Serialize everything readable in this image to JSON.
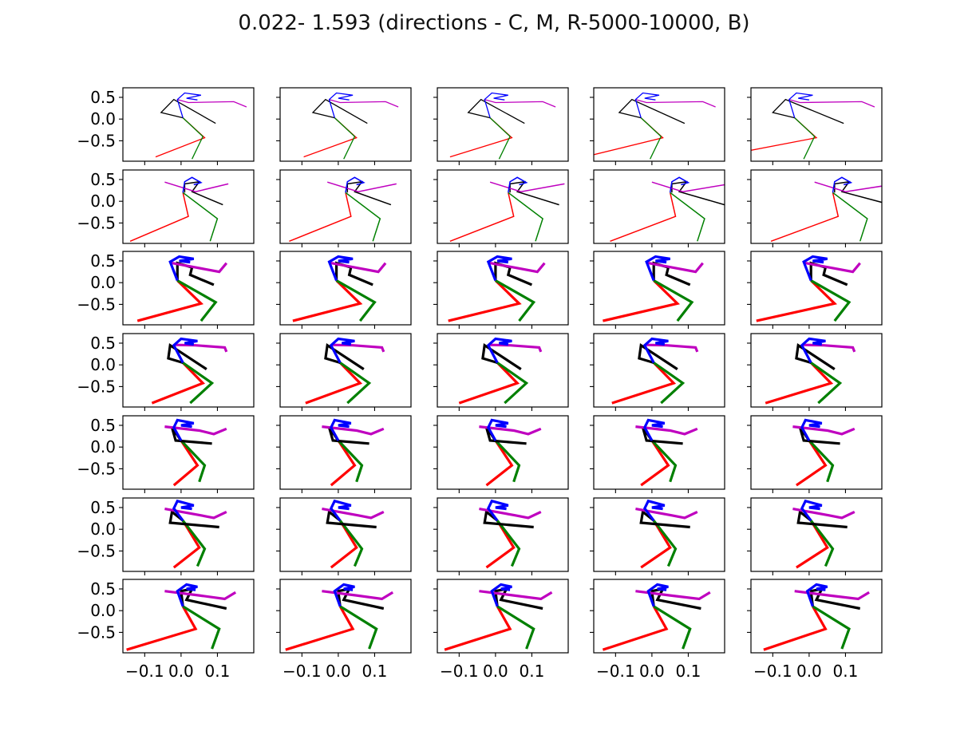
{
  "chart_data": {
    "type": "line",
    "title": "0.022- 1.593 (directions - C, M, R-5000-10000, B)",
    "grid": false,
    "layout": {
      "rows": 7,
      "cols": 5,
      "sharex": true,
      "sharey": true
    },
    "xlim": [
      -0.16,
      0.2
    ],
    "ylim": [
      -0.97,
      0.72
    ],
    "xticks": [
      -0.1,
      0.0,
      0.1
    ],
    "xtick_labels": [
      "−0.1",
      "0.0",
      "0.1"
    ],
    "yticks": [
      0.5,
      0.0,
      -0.5
    ],
    "ytick_labels": [
      "0.5",
      "0.0",
      "−0.5"
    ],
    "series_colors": [
      "#ff0000",
      "#008000",
      "#000000",
      "#bf00bf",
      "#0000ff"
    ],
    "row_line_widths": [
      1.3,
      1.5,
      3.2,
      3.2,
      3.2,
      3.2,
      3.2
    ],
    "rows": [
      {
        "base": [
          [
            [
              0.005,
              0.03
            ],
            [
              0.065,
              -0.43
            ],
            [
              -0.07,
              -0.87
            ]
          ],
          [
            [
              0.005,
              0.03
            ],
            [
              0.06,
              -0.4
            ],
            [
              0.03,
              -0.92
            ]
          ],
          [
            [
              0.005,
              0.03
            ],
            [
              -0.055,
              0.15
            ],
            [
              -0.02,
              0.45
            ],
            [
              0.095,
              -0.1
            ]
          ],
          [
            [
              -0.01,
              0.45
            ],
            [
              0.02,
              0.38
            ],
            [
              0.145,
              0.4
            ],
            [
              0.18,
              0.28
            ]
          ],
          [
            [
              0.005,
              0.03
            ],
            [
              -0.01,
              0.45
            ],
            [
              0.01,
              0.6
            ],
            [
              0.055,
              0.55
            ],
            [
              0.015,
              0.48
            ],
            [
              0.045,
              0.44
            ]
          ]
        ],
        "shift": [
          0,
          -0.015,
          -0.02,
          -0.035,
          -0.045
        ],
        "ext_delta": [
          0,
          0,
          0.005,
          0.03,
          0.045
        ],
        "arm_delta": [
          0,
          -0.01,
          -0.035,
          -0.08,
          -0.14
        ]
      },
      {
        "base": [
          [
            [
              0.005,
              0.2
            ],
            [
              0.02,
              -0.35
            ],
            [
              -0.14,
              -0.92
            ]
          ],
          [
            [
              0.005,
              0.2
            ],
            [
              0.1,
              -0.4
            ],
            [
              0.08,
              -0.92
            ]
          ],
          [
            [
              0.01,
              0.2
            ],
            [
              0.01,
              0.4
            ],
            [
              0.05,
              0.45
            ],
            [
              0.03,
              0.22
            ],
            [
              0.115,
              -0.08
            ]
          ],
          [
            [
              -0.045,
              0.44
            ],
            [
              0.04,
              0.22
            ],
            [
              0.13,
              0.4
            ]
          ],
          [
            [
              0.005,
              0.2
            ],
            [
              0.01,
              0.45
            ],
            [
              0.03,
              0.55
            ],
            [
              0.055,
              0.43
            ],
            [
              0.035,
              0.38
            ]
          ]
        ],
        "shift": [
          0,
          0.015,
          0.03,
          0.045,
          0.06
        ],
        "ext_delta": [
          0,
          0.015,
          0.03,
          0.04,
          0.05
        ],
        "arm_delta": [
          0,
          -0.01,
          -0.015,
          -0.02,
          -0.025
        ]
      },
      {
        "base": [
          [
            [
              -0.01,
              0.05
            ],
            [
              0.055,
              -0.48
            ],
            [
              -0.12,
              -0.88
            ]
          ],
          [
            [
              -0.01,
              0.05
            ],
            [
              0.095,
              -0.45
            ],
            [
              0.055,
              -0.88
            ]
          ],
          [
            [
              -0.01,
              0.05
            ],
            [
              -0.01,
              0.45
            ],
            [
              0.03,
              0.35
            ],
            [
              0.025,
              0.18
            ],
            [
              0.09,
              -0.05
            ]
          ],
          [
            [
              -0.03,
              0.46
            ],
            [
              0.04,
              0.35
            ],
            [
              0.105,
              0.25
            ],
            [
              0.125,
              0.45
            ]
          ],
          [
            [
              -0.01,
              0.05
            ],
            [
              -0.03,
              0.48
            ],
            [
              -0.005,
              0.6
            ],
            [
              0.035,
              0.55
            ],
            [
              -0.005,
              0.5
            ],
            [
              0.025,
              0.47
            ]
          ]
        ],
        "shift": [
          0,
          0.005,
          0.01,
          0.015,
          0.015
        ],
        "ext_delta": [
          0,
          0.0,
          0.0,
          0.0,
          0.0
        ],
        "arm_delta": [
          0,
          -0.01,
          -0.02,
          -0.03,
          -0.04
        ]
      },
      {
        "base": [
          [
            [
              0.005,
              0.05
            ],
            [
              0.06,
              -0.42
            ],
            [
              -0.08,
              -0.88
            ]
          ],
          [
            [
              0.005,
              0.05
            ],
            [
              0.085,
              -0.42
            ],
            [
              0.025,
              -0.88
            ]
          ],
          [
            [
              0.005,
              0.05
            ],
            [
              -0.035,
              0.15
            ],
            [
              -0.03,
              0.45
            ],
            [
              0.07,
              -0.1
            ]
          ],
          [
            [
              -0.015,
              0.46
            ],
            [
              0.04,
              0.45
            ],
            [
              0.12,
              0.4
            ],
            [
              0.125,
              0.3
            ]
          ],
          [
            [
              0.005,
              0.05
            ],
            [
              -0.02,
              0.45
            ],
            [
              0.0,
              0.6
            ],
            [
              0.045,
              0.55
            ],
            [
              0.01,
              0.5
            ],
            [
              0.035,
              0.47
            ]
          ]
        ],
        "shift": [
          0,
          0.0,
          0.0,
          0.0,
          0.0
        ],
        "ext_delta": [
          0,
          0.0,
          0.0,
          0.0,
          0.0
        ],
        "arm_delta": [
          0,
          -0.01,
          -0.02,
          -0.03,
          -0.04
        ]
      },
      {
        "base": [
          [
            [
              0.0,
              0.15
            ],
            [
              0.045,
              -0.42
            ],
            [
              -0.02,
              -0.88
            ]
          ],
          [
            [
              0.0,
              0.15
            ],
            [
              0.065,
              -0.42
            ],
            [
              0.05,
              -0.8
            ]
          ],
          [
            [
              0.0,
              0.15
            ],
            [
              -0.025,
              0.45
            ],
            [
              -0.015,
              0.15
            ],
            [
              0.085,
              0.08
            ]
          ],
          [
            [
              -0.045,
              0.47
            ],
            [
              0.05,
              0.38
            ],
            [
              0.09,
              0.3
            ],
            [
              0.125,
              0.42
            ]
          ],
          [
            [
              0.0,
              0.15
            ],
            [
              -0.02,
              0.45
            ],
            [
              -0.01,
              0.62
            ],
            [
              0.035,
              0.55
            ],
            [
              0.0,
              0.5
            ],
            [
              0.03,
              0.47
            ]
          ]
        ],
        "shift": [
          0,
          0.0,
          0.0,
          0.0,
          0.0
        ],
        "ext_delta": [
          0,
          0.0,
          0.0,
          0.0,
          0.0
        ],
        "arm_delta": [
          0,
          0.0,
          -0.005,
          -0.01,
          -0.015
        ]
      },
      {
        "base": [
          [
            [
              0.005,
              0.2
            ],
            [
              0.05,
              -0.42
            ],
            [
              -0.02,
              -0.88
            ]
          ],
          [
            [
              0.005,
              0.2
            ],
            [
              0.065,
              -0.45
            ],
            [
              0.045,
              -0.85
            ]
          ],
          [
            [
              0.005,
              0.2
            ],
            [
              -0.025,
              0.4
            ],
            [
              -0.03,
              0.15
            ],
            [
              0.105,
              0.05
            ]
          ],
          [
            [
              -0.045,
              0.47
            ],
            [
              0.055,
              0.32
            ],
            [
              0.09,
              0.26
            ],
            [
              0.125,
              0.4
            ]
          ],
          [
            [
              0.005,
              0.2
            ],
            [
              -0.02,
              0.48
            ],
            [
              -0.01,
              0.65
            ],
            [
              0.035,
              0.55
            ],
            [
              0.0,
              0.5
            ],
            [
              0.03,
              0.47
            ]
          ]
        ],
        "shift": [
          0,
          0.0,
          0.0,
          0.0,
          0.0
        ],
        "ext_delta": [
          0,
          0.0,
          0.0,
          0.0,
          0.0
        ],
        "arm_delta": [
          0,
          0.0,
          -0.005,
          -0.01,
          -0.015
        ]
      },
      {
        "base": [
          [
            [
              0.005,
              0.1
            ],
            [
              0.04,
              -0.42
            ],
            [
              -0.15,
              -0.9
            ]
          ],
          [
            [
              0.005,
              0.1
            ],
            [
              0.105,
              -0.42
            ],
            [
              0.085,
              -0.88
            ]
          ],
          [
            [
              0.005,
              0.1
            ],
            [
              0.0,
              0.45
            ],
            [
              0.03,
              0.5
            ],
            [
              0.015,
              0.25
            ],
            [
              0.125,
              0.05
            ]
          ],
          [
            [
              -0.045,
              0.45
            ],
            [
              0.05,
              0.35
            ],
            [
              0.12,
              0.27
            ],
            [
              0.15,
              0.42
            ]
          ],
          [
            [
              0.005,
              0.1
            ],
            [
              -0.01,
              0.45
            ],
            [
              0.015,
              0.6
            ],
            [
              0.045,
              0.55
            ],
            [
              0.015,
              0.5
            ],
            [
              0.04,
              0.48
            ]
          ]
        ],
        "shift": [
          0,
          0.0,
          0.0,
          0.0,
          0.005
        ],
        "ext_delta": [
          0,
          0.0,
          0.005,
          0.01,
          0.01
        ],
        "arm_delta": [
          0,
          0.005,
          0.01,
          0.015,
          0.02
        ]
      }
    ]
  }
}
